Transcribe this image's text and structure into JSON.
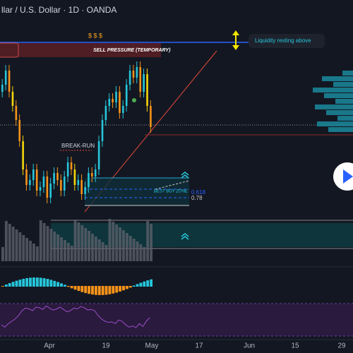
{
  "header": {
    "title": "llar / U.S. Dollar · 1D · OANDA"
  },
  "annotations": {
    "dollar_signs": "$ $ $",
    "sell_pressure": "SELL PRESSURE (TEMPORARY)",
    "liquidity": "Liquidity resting above",
    "break_run": "BREAK-RUN",
    "best_buy_zone": "BEST BUY ZONE",
    "fib_618": "0.618",
    "fib_78": "0.78"
  },
  "time_axis": {
    "labels": [
      "Apr",
      "19",
      "May",
      "17",
      "Jun",
      "15",
      "29"
    ]
  }
}
